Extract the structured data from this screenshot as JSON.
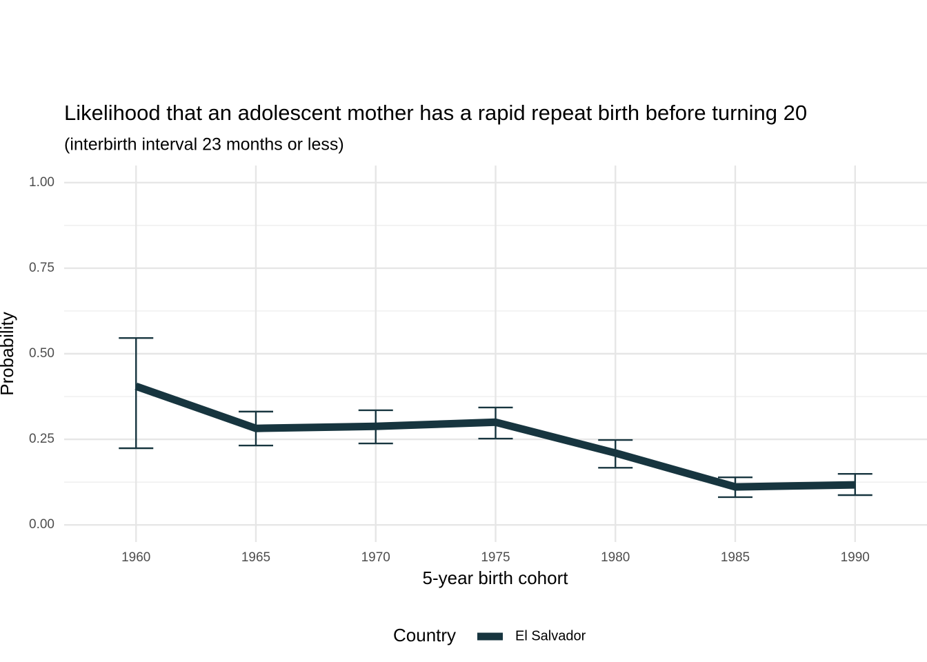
{
  "chart_data": {
    "type": "line",
    "title": "Likelihood that an adolescent mother has a rapid repeat birth before turning 20",
    "subtitle": "(interbirth interval 23 months or less)",
    "x_label": "5-year birth cohort",
    "y_label": "Probability",
    "legend_title": "Country",
    "x": [
      1960,
      1965,
      1970,
      1975,
      1980,
      1985,
      1990
    ],
    "series": [
      {
        "name": "El Salvador",
        "color": "#17353f",
        "values": [
          0.405,
          0.282,
          0.288,
          0.3,
          0.21,
          0.111,
          0.117
        ],
        "lower": [
          0.224,
          0.232,
          0.238,
          0.252,
          0.167,
          0.081,
          0.087
        ],
        "upper": [
          0.546,
          0.331,
          0.335,
          0.343,
          0.248,
          0.139,
          0.149
        ]
      }
    ],
    "xlim": [
      1957,
      1993
    ],
    "xticks": [
      1960,
      1965,
      1970,
      1975,
      1980,
      1985,
      1990
    ],
    "ylim": [
      -0.05,
      1.05
    ],
    "yticks": [
      {
        "value": 0,
        "label": "0.00"
      },
      {
        "value": 0.25,
        "label": "0.25"
      },
      {
        "value": 0.5,
        "label": "0.50"
      },
      {
        "value": 0.75,
        "label": "0.75"
      },
      {
        "value": 1,
        "label": "1.00"
      }
    ],
    "grid": true,
    "legend": "bottom"
  }
}
